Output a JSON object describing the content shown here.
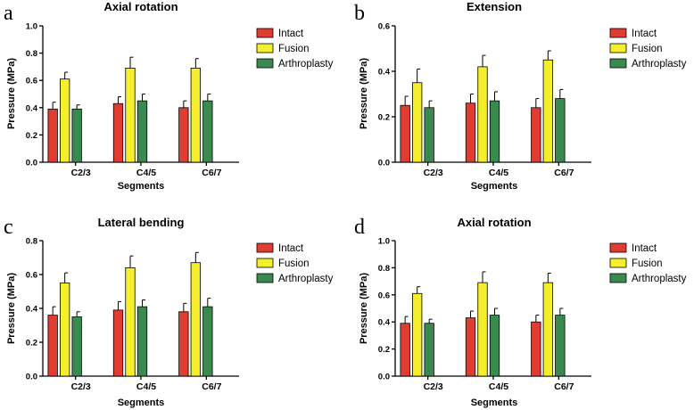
{
  "chart_data": [
    {
      "panel": "a",
      "type": "bar",
      "title": "Axial rotation",
      "xlabel": "Segments",
      "ylabel": "Pressure (MPa)",
      "ylim": [
        0,
        1.0
      ],
      "yticks": [
        "0.0",
        "0.2",
        "0.4",
        "0.6",
        "0.8",
        "1.0"
      ],
      "categories": [
        "C2/3",
        "C4/5",
        "C6/7"
      ],
      "series": [
        {
          "name": "Intact",
          "color": "#e03c31",
          "values": [
            0.39,
            0.43,
            0.4
          ],
          "errors": [
            0.05,
            0.05,
            0.05
          ]
        },
        {
          "name": "Fusion",
          "color": "#f5ee2a",
          "values": [
            0.61,
            0.69,
            0.69
          ],
          "errors": [
            0.05,
            0.08,
            0.07
          ]
        },
        {
          "name": "Arthroplasty",
          "color": "#3a8a4f",
          "values": [
            0.39,
            0.45,
            0.45
          ],
          "errors": [
            0.03,
            0.05,
            0.05
          ]
        }
      ]
    },
    {
      "panel": "b",
      "type": "bar",
      "title": "Extension",
      "xlabel": "Segments",
      "ylabel": "Pressure (MPa)",
      "ylim": [
        0,
        0.6
      ],
      "yticks": [
        "0.0",
        "0.2",
        "0.4",
        "0.6"
      ],
      "categories": [
        "C2/3",
        "C4/5",
        "C6/7"
      ],
      "series": [
        {
          "name": "Intact",
          "color": "#e03c31",
          "values": [
            0.25,
            0.26,
            0.24
          ],
          "errors": [
            0.04,
            0.04,
            0.04
          ]
        },
        {
          "name": "Fusion",
          "color": "#f5ee2a",
          "values": [
            0.35,
            0.42,
            0.45
          ],
          "errors": [
            0.06,
            0.05,
            0.04
          ]
        },
        {
          "name": "Arthroplasty",
          "color": "#3a8a4f",
          "values": [
            0.24,
            0.27,
            0.28
          ],
          "errors": [
            0.03,
            0.04,
            0.04
          ]
        }
      ]
    },
    {
      "panel": "c",
      "type": "bar",
      "title": "Lateral bending",
      "xlabel": "Segments",
      "ylabel": "Pressure (MPa)",
      "ylim": [
        0,
        0.8
      ],
      "yticks": [
        "0.0",
        "0.2",
        "0.4",
        "0.6",
        "0.8"
      ],
      "categories": [
        "C2/3",
        "C4/5",
        "C6/7"
      ],
      "series": [
        {
          "name": "Intact",
          "color": "#e03c31",
          "values": [
            0.36,
            0.39,
            0.38
          ],
          "errors": [
            0.05,
            0.05,
            0.05
          ]
        },
        {
          "name": "Fusion",
          "color": "#f5ee2a",
          "values": [
            0.55,
            0.64,
            0.67
          ],
          "errors": [
            0.06,
            0.07,
            0.06
          ]
        },
        {
          "name": "Arthroplasty",
          "color": "#3a8a4f",
          "values": [
            0.35,
            0.41,
            0.41
          ],
          "errors": [
            0.03,
            0.04,
            0.05
          ]
        }
      ]
    },
    {
      "panel": "d",
      "type": "bar",
      "title": "Axial rotation",
      "xlabel": "Segments",
      "ylabel": "Pressure (MPa)",
      "ylim": [
        0,
        1.0
      ],
      "yticks": [
        "0.0",
        "0.2",
        "0.4",
        "0.6",
        "0.8",
        "1.0"
      ],
      "categories": [
        "C2/3",
        "C4/5",
        "C6/7"
      ],
      "series": [
        {
          "name": "Intact",
          "color": "#e03c31",
          "values": [
            0.39,
            0.43,
            0.4
          ],
          "errors": [
            0.05,
            0.05,
            0.05
          ]
        },
        {
          "name": "Fusion",
          "color": "#f5ee2a",
          "values": [
            0.61,
            0.69,
            0.69
          ],
          "errors": [
            0.05,
            0.08,
            0.07
          ]
        },
        {
          "name": "Arthroplasty",
          "color": "#3a8a4f",
          "values": [
            0.39,
            0.45,
            0.45
          ],
          "errors": [
            0.03,
            0.05,
            0.05
          ]
        }
      ]
    }
  ]
}
